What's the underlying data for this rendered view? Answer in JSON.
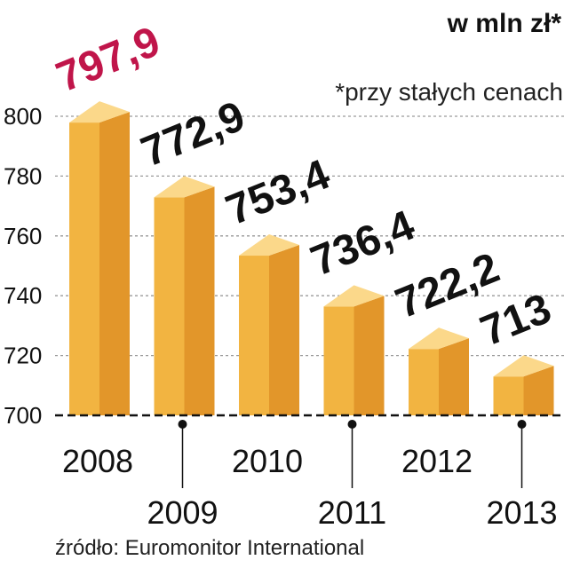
{
  "unit_label": "w mln zł*",
  "note": "*przy stałych cenach",
  "source": "źródło: Euromonitor International",
  "colors": {
    "bar_front": "#f2b441",
    "bar_side": "#e2962a",
    "bar_top": "#fbd88a",
    "highlight_label": "#c0154a",
    "label": "#111111",
    "axis": "#111111",
    "grid": "#9a9a9a"
  },
  "chart_data": {
    "type": "bar",
    "style": "3d",
    "categories": [
      "2008",
      "2009",
      "2010",
      "2011",
      "2012",
      "2013"
    ],
    "values": [
      797.9,
      772.9,
      753.4,
      736.4,
      722.2,
      713
    ],
    "value_labels": [
      "797,9",
      "772,9",
      "753,4",
      "736,4",
      "722,2",
      "713"
    ],
    "highlight_index": 0,
    "title": "",
    "xlabel": "",
    "ylabel": "w mln zł*",
    "ylim": [
      700,
      800
    ],
    "yticks": [
      700,
      720,
      740,
      760,
      780,
      800
    ],
    "grid": true
  }
}
